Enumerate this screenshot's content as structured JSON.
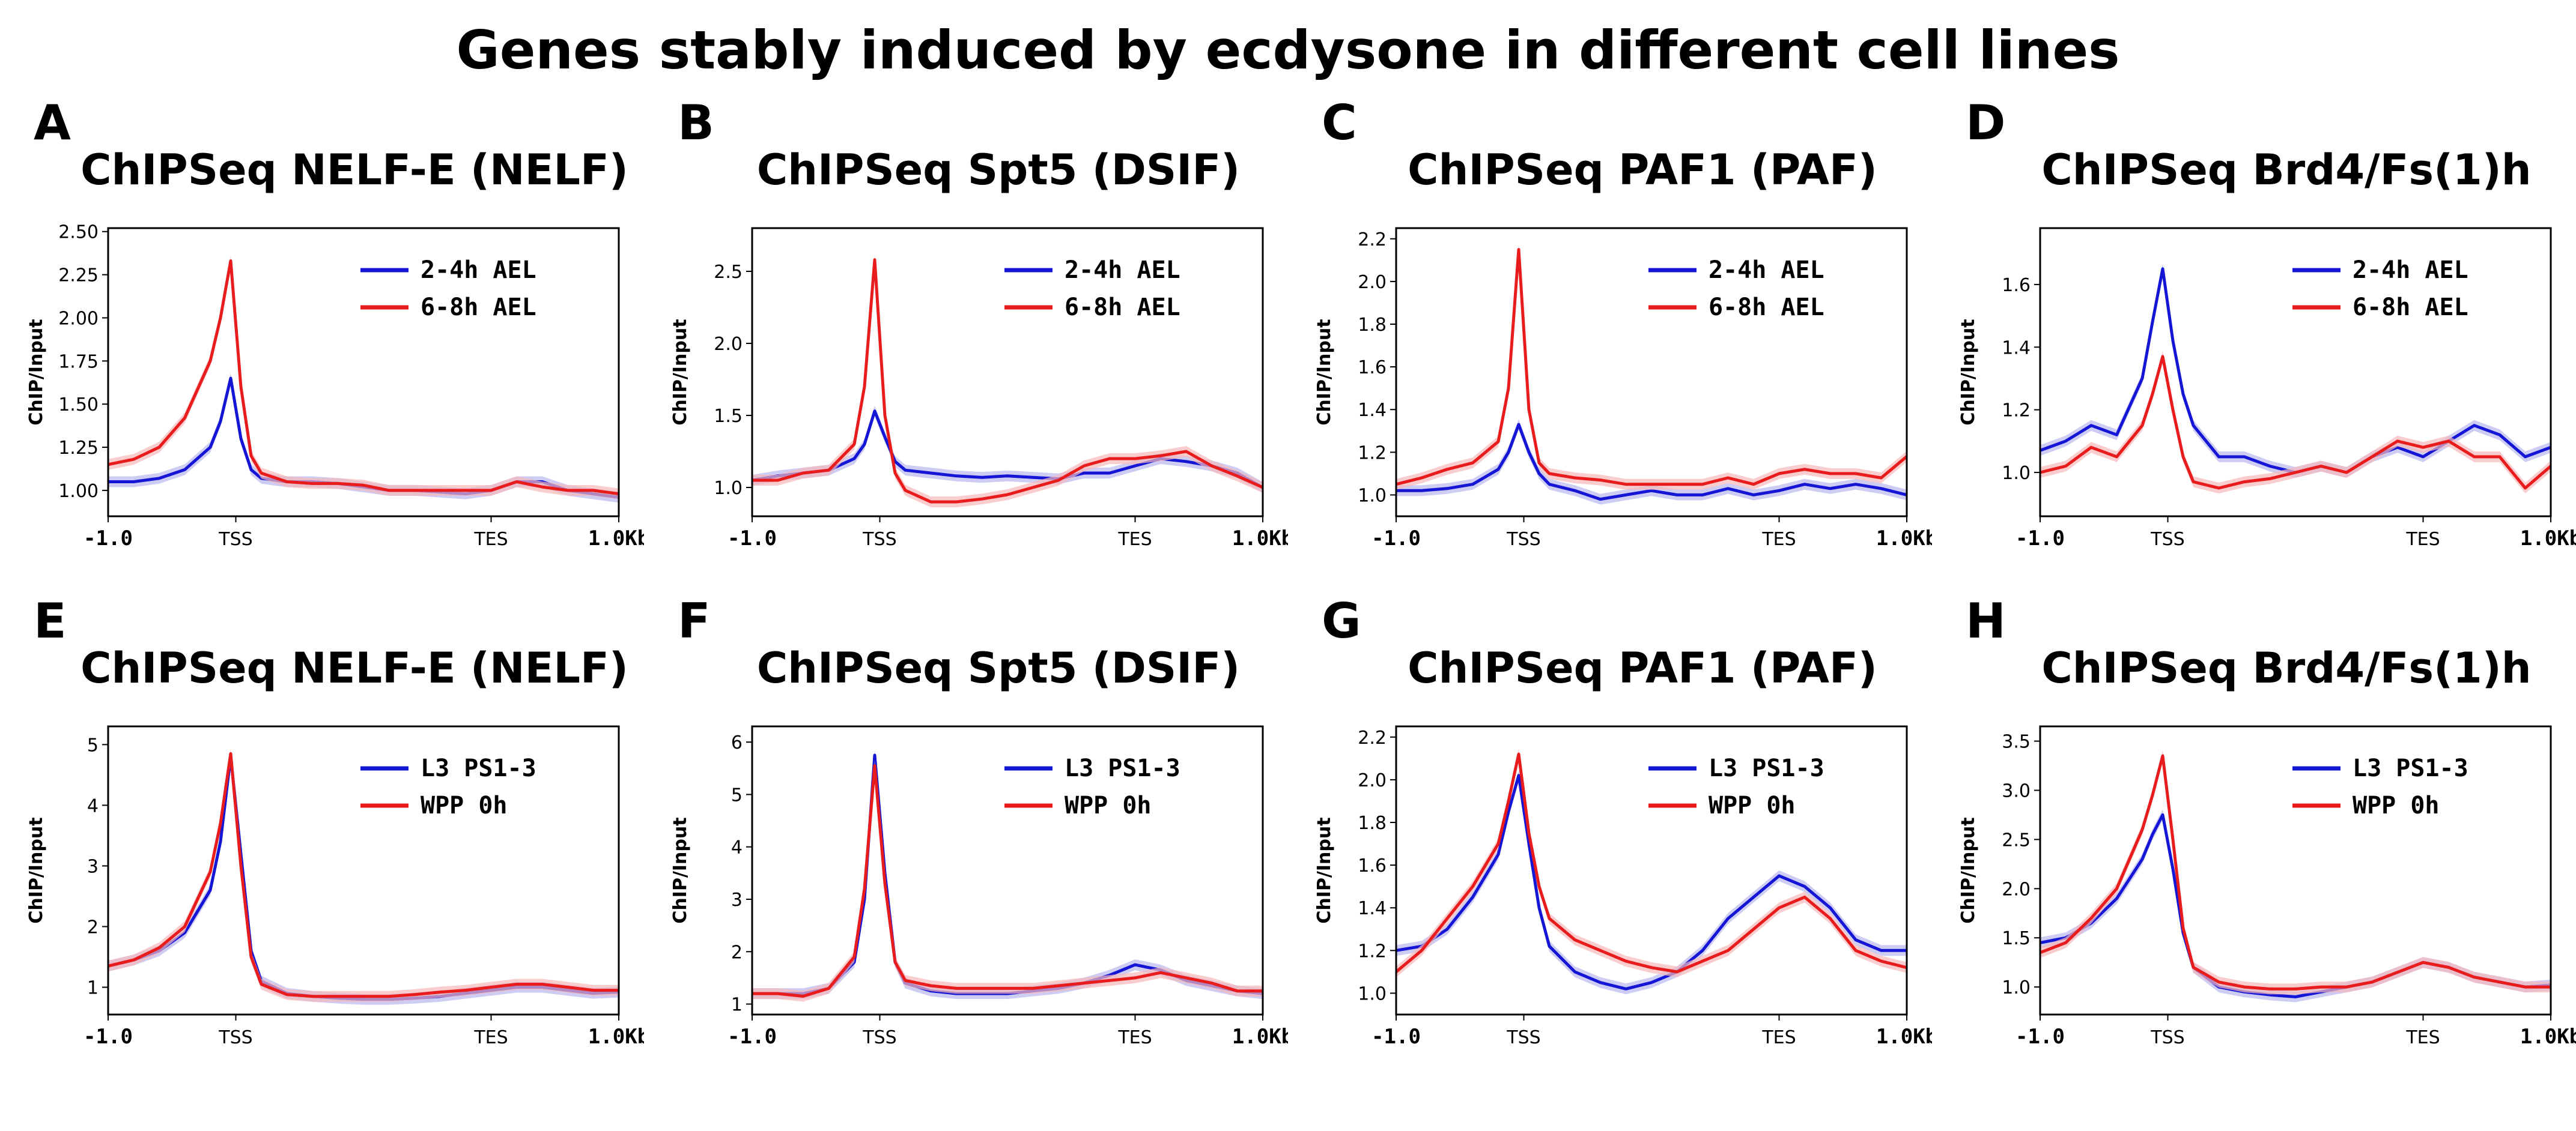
{
  "title": "Genes stably induced by ecdysone in different cell lines",
  "colors": {
    "blue": "#1515d6",
    "red": "#e81c1c",
    "blue_band": "#b8b8f0",
    "red_band": "#f6b8b8"
  },
  "chart_data": [
    {
      "panel": "A",
      "type": "line",
      "title": "ChIPSeq NELF-E (NELF)",
      "ylabel": "ChIP/Input",
      "ylim": [
        0.85,
        2.52
      ],
      "yticks": [
        "1.00",
        "1.25",
        "1.50",
        "1.75",
        "2.00",
        "2.25",
        "2.50"
      ],
      "xticks": [
        "-1.0",
        "TSS",
        "TES",
        "1.0Kb"
      ],
      "legend": "top-right",
      "series": [
        {
          "name": "2-4h AEL",
          "color": "#1515d6",
          "x": [
            0,
            0.05,
            0.1,
            0.15,
            0.2,
            0.22,
            0.24,
            0.26,
            0.28,
            0.3,
            0.35,
            0.4,
            0.45,
            0.5,
            0.55,
            0.6,
            0.65,
            0.7,
            0.75,
            0.8,
            0.85,
            0.9,
            0.95,
            1.0
          ],
          "y": [
            1.05,
            1.05,
            1.07,
            1.12,
            1.25,
            1.4,
            1.65,
            1.3,
            1.12,
            1.07,
            1.05,
            1.05,
            1.04,
            1.02,
            1.0,
            1.0,
            0.99,
            0.98,
            1.0,
            1.05,
            1.05,
            1.0,
            0.98,
            0.96
          ]
        },
        {
          "name": "6-8h AEL",
          "color": "#e81c1c",
          "x": [
            0,
            0.05,
            0.1,
            0.15,
            0.2,
            0.22,
            0.24,
            0.26,
            0.28,
            0.3,
            0.35,
            0.4,
            0.45,
            0.5,
            0.55,
            0.6,
            0.65,
            0.7,
            0.75,
            0.8,
            0.85,
            0.9,
            0.95,
            1.0
          ],
          "y": [
            1.15,
            1.18,
            1.25,
            1.42,
            1.75,
            2.0,
            2.33,
            1.6,
            1.2,
            1.1,
            1.05,
            1.04,
            1.04,
            1.03,
            1.0,
            1.0,
            1.0,
            1.0,
            1.0,
            1.05,
            1.02,
            1.0,
            1.0,
            0.98
          ]
        }
      ]
    },
    {
      "panel": "B",
      "type": "line",
      "title": "ChIPSeq Spt5 (DSIF)",
      "ylabel": "ChIP/Input",
      "ylim": [
        0.8,
        2.8
      ],
      "yticks": [
        "1.0",
        "1.5",
        "2.0",
        "2.5"
      ],
      "xticks": [
        "-1.0",
        "TSS",
        "TES",
        "1.0Kb"
      ],
      "legend": "top-right",
      "series": [
        {
          "name": "2-4h AEL",
          "color": "#1515d6",
          "x": [
            0,
            0.05,
            0.1,
            0.15,
            0.2,
            0.22,
            0.24,
            0.26,
            0.28,
            0.3,
            0.35,
            0.4,
            0.45,
            0.5,
            0.55,
            0.6,
            0.65,
            0.7,
            0.75,
            0.8,
            0.85,
            0.9,
            0.95,
            1.0
          ],
          "y": [
            1.05,
            1.08,
            1.1,
            1.12,
            1.2,
            1.3,
            1.53,
            1.35,
            1.18,
            1.12,
            1.1,
            1.08,
            1.07,
            1.08,
            1.07,
            1.06,
            1.1,
            1.1,
            1.15,
            1.2,
            1.18,
            1.15,
            1.1,
            1.0
          ]
        },
        {
          "name": "6-8h AEL",
          "color": "#e81c1c",
          "x": [
            0,
            0.05,
            0.1,
            0.15,
            0.2,
            0.22,
            0.24,
            0.26,
            0.28,
            0.3,
            0.35,
            0.4,
            0.45,
            0.5,
            0.55,
            0.6,
            0.65,
            0.7,
            0.75,
            0.8,
            0.85,
            0.9,
            0.95,
            1.0
          ],
          "y": [
            1.05,
            1.05,
            1.1,
            1.12,
            1.3,
            1.7,
            2.58,
            1.5,
            1.1,
            0.98,
            0.9,
            0.9,
            0.92,
            0.95,
            1.0,
            1.05,
            1.15,
            1.2,
            1.2,
            1.22,
            1.25,
            1.15,
            1.08,
            1.0
          ]
        }
      ]
    },
    {
      "panel": "C",
      "type": "line",
      "title": "ChIPSeq PAF1 (PAF)",
      "ylabel": "ChIP/Input",
      "ylim": [
        0.9,
        2.25
      ],
      "yticks": [
        "1.0",
        "1.2",
        "1.4",
        "1.6",
        "1.8",
        "2.0",
        "2.2"
      ],
      "xticks": [
        "-1.0",
        "TSS",
        "TES",
        "1.0Kb"
      ],
      "legend": "top-right",
      "series": [
        {
          "name": "2-4h AEL",
          "color": "#1515d6",
          "x": [
            0,
            0.05,
            0.1,
            0.15,
            0.2,
            0.22,
            0.24,
            0.26,
            0.28,
            0.3,
            0.35,
            0.4,
            0.45,
            0.5,
            0.55,
            0.6,
            0.65,
            0.7,
            0.75,
            0.8,
            0.85,
            0.9,
            0.95,
            1.0
          ],
          "y": [
            1.02,
            1.02,
            1.03,
            1.05,
            1.12,
            1.2,
            1.33,
            1.2,
            1.1,
            1.05,
            1.02,
            0.98,
            1.0,
            1.02,
            1.0,
            1.0,
            1.03,
            1.0,
            1.02,
            1.05,
            1.03,
            1.05,
            1.03,
            1.0
          ]
        },
        {
          "name": "6-8h AEL",
          "color": "#e81c1c",
          "x": [
            0,
            0.05,
            0.1,
            0.15,
            0.2,
            0.22,
            0.24,
            0.26,
            0.28,
            0.3,
            0.35,
            0.4,
            0.45,
            0.5,
            0.55,
            0.6,
            0.65,
            0.7,
            0.75,
            0.8,
            0.85,
            0.9,
            0.95,
            1.0
          ],
          "y": [
            1.05,
            1.08,
            1.12,
            1.15,
            1.25,
            1.5,
            2.15,
            1.4,
            1.15,
            1.1,
            1.08,
            1.07,
            1.05,
            1.05,
            1.05,
            1.05,
            1.08,
            1.05,
            1.1,
            1.12,
            1.1,
            1.1,
            1.08,
            1.18
          ]
        }
      ]
    },
    {
      "panel": "D",
      "type": "line",
      "title": "ChIPSeq Brd4/Fs(1)h",
      "ylabel": "ChIP/Input",
      "ylim": [
        0.86,
        1.78
      ],
      "yticks": [
        "1.0",
        "1.2",
        "1.4",
        "1.6"
      ],
      "xticks": [
        "-1.0",
        "TSS",
        "TES",
        "1.0Kb"
      ],
      "legend": "top-right",
      "series": [
        {
          "name": "2-4h AEL",
          "color": "#1515d6",
          "x": [
            0,
            0.05,
            0.1,
            0.15,
            0.2,
            0.22,
            0.24,
            0.26,
            0.28,
            0.3,
            0.35,
            0.4,
            0.45,
            0.5,
            0.55,
            0.6,
            0.65,
            0.7,
            0.75,
            0.8,
            0.85,
            0.9,
            0.95,
            1.0
          ],
          "y": [
            1.07,
            1.1,
            1.15,
            1.12,
            1.3,
            1.48,
            1.65,
            1.42,
            1.25,
            1.15,
            1.05,
            1.05,
            1.02,
            1.0,
            1.02,
            1.0,
            1.05,
            1.08,
            1.05,
            1.1,
            1.15,
            1.12,
            1.05,
            1.08
          ]
        },
        {
          "name": "6-8h AEL",
          "color": "#e81c1c",
          "x": [
            0,
            0.05,
            0.1,
            0.15,
            0.2,
            0.22,
            0.24,
            0.26,
            0.28,
            0.3,
            0.35,
            0.4,
            0.45,
            0.5,
            0.55,
            0.6,
            0.65,
            0.7,
            0.75,
            0.8,
            0.85,
            0.9,
            0.95,
            1.0
          ],
          "y": [
            1.0,
            1.02,
            1.08,
            1.05,
            1.15,
            1.25,
            1.37,
            1.2,
            1.05,
            0.97,
            0.95,
            0.97,
            0.98,
            1.0,
            1.02,
            1.0,
            1.05,
            1.1,
            1.08,
            1.1,
            1.05,
            1.05,
            0.95,
            1.02
          ]
        }
      ]
    },
    {
      "panel": "E",
      "type": "line",
      "title": "ChIPSeq NELF-E (NELF)",
      "ylabel": "ChIP/Input",
      "ylim": [
        0.55,
        5.3
      ],
      "yticks": [
        "1",
        "2",
        "3",
        "4",
        "5"
      ],
      "xticks": [
        "-1.0",
        "TSS",
        "TES",
        "1.0Kb"
      ],
      "legend": "top-right",
      "series": [
        {
          "name": "L3 PS1-3",
          "color": "#1515d6",
          "x": [
            0,
            0.05,
            0.1,
            0.15,
            0.2,
            0.22,
            0.24,
            0.26,
            0.28,
            0.3,
            0.35,
            0.4,
            0.45,
            0.5,
            0.55,
            0.6,
            0.65,
            0.7,
            0.75,
            0.8,
            0.85,
            0.9,
            0.95,
            1.0
          ],
          "y": [
            1.35,
            1.45,
            1.6,
            1.9,
            2.6,
            3.4,
            4.8,
            3.2,
            1.6,
            1.1,
            0.9,
            0.85,
            0.82,
            0.8,
            0.8,
            0.82,
            0.85,
            0.9,
            0.95,
            1.0,
            1.0,
            0.95,
            0.9,
            0.92
          ]
        },
        {
          "name": "WPP 0h",
          "color": "#e81c1c",
          "x": [
            0,
            0.05,
            0.1,
            0.15,
            0.2,
            0.22,
            0.24,
            0.26,
            0.28,
            0.3,
            0.35,
            0.4,
            0.45,
            0.5,
            0.55,
            0.6,
            0.65,
            0.7,
            0.75,
            0.8,
            0.85,
            0.9,
            0.95,
            1.0
          ],
          "y": [
            1.35,
            1.45,
            1.65,
            2.0,
            2.9,
            3.7,
            4.85,
            3.0,
            1.5,
            1.05,
            0.88,
            0.85,
            0.85,
            0.85,
            0.85,
            0.88,
            0.92,
            0.95,
            1.0,
            1.05,
            1.05,
            1.0,
            0.95,
            0.95
          ]
        }
      ]
    },
    {
      "panel": "F",
      "type": "line",
      "title": "ChIPSeq Spt5 (DSIF)",
      "ylabel": "ChIP/Input",
      "ylim": [
        0.8,
        6.3
      ],
      "yticks": [
        "1",
        "2",
        "3",
        "4",
        "5",
        "6"
      ],
      "xticks": [
        "-1.0",
        "TSS",
        "TES",
        "1.0Kb"
      ],
      "legend": "top-right",
      "series": [
        {
          "name": "L3 PS1-3",
          "color": "#1515d6",
          "x": [
            0,
            0.05,
            0.1,
            0.15,
            0.2,
            0.22,
            0.24,
            0.26,
            0.28,
            0.3,
            0.35,
            0.4,
            0.45,
            0.5,
            0.55,
            0.6,
            0.65,
            0.7,
            0.75,
            0.8,
            0.85,
            0.9,
            0.95,
            1.0
          ],
          "y": [
            1.2,
            1.2,
            1.2,
            1.3,
            1.8,
            3.0,
            5.75,
            3.5,
            1.8,
            1.4,
            1.25,
            1.2,
            1.2,
            1.2,
            1.25,
            1.3,
            1.4,
            1.55,
            1.75,
            1.65,
            1.45,
            1.35,
            1.25,
            1.2
          ]
        },
        {
          "name": "WPP 0h",
          "color": "#e81c1c",
          "x": [
            0,
            0.05,
            0.1,
            0.15,
            0.2,
            0.22,
            0.24,
            0.26,
            0.28,
            0.3,
            0.35,
            0.4,
            0.45,
            0.5,
            0.55,
            0.6,
            0.65,
            0.7,
            0.75,
            0.8,
            0.85,
            0.9,
            0.95,
            1.0
          ],
          "y": [
            1.2,
            1.2,
            1.15,
            1.3,
            1.9,
            3.2,
            5.55,
            3.3,
            1.8,
            1.45,
            1.35,
            1.3,
            1.3,
            1.3,
            1.3,
            1.35,
            1.4,
            1.45,
            1.5,
            1.6,
            1.5,
            1.4,
            1.25,
            1.25
          ]
        }
      ]
    },
    {
      "panel": "G",
      "type": "line",
      "title": "ChIPSeq PAF1 (PAF)",
      "ylabel": "ChIP/Input",
      "ylim": [
        0.9,
        2.25
      ],
      "yticks": [
        "1.0",
        "1.2",
        "1.4",
        "1.6",
        "1.8",
        "2.0",
        "2.2"
      ],
      "xticks": [
        "-1.0",
        "TSS",
        "TES",
        "1.0Kb"
      ],
      "legend": "top-right",
      "series": [
        {
          "name": "L3 PS1-3",
          "color": "#1515d6",
          "x": [
            0,
            0.05,
            0.1,
            0.15,
            0.2,
            0.22,
            0.24,
            0.26,
            0.28,
            0.3,
            0.35,
            0.4,
            0.45,
            0.5,
            0.55,
            0.6,
            0.65,
            0.7,
            0.75,
            0.8,
            0.85,
            0.9,
            0.95,
            1.0
          ],
          "y": [
            1.2,
            1.22,
            1.3,
            1.45,
            1.65,
            1.85,
            2.02,
            1.7,
            1.4,
            1.22,
            1.1,
            1.05,
            1.02,
            1.05,
            1.1,
            1.2,
            1.35,
            1.45,
            1.55,
            1.5,
            1.4,
            1.25,
            1.2,
            1.2
          ]
        },
        {
          "name": "WPP 0h",
          "color": "#e81c1c",
          "x": [
            0,
            0.05,
            0.1,
            0.15,
            0.2,
            0.22,
            0.24,
            0.26,
            0.28,
            0.3,
            0.35,
            0.4,
            0.45,
            0.5,
            0.55,
            0.6,
            0.65,
            0.7,
            0.75,
            0.8,
            0.85,
            0.9,
            0.95,
            1.0
          ],
          "y": [
            1.1,
            1.2,
            1.35,
            1.5,
            1.7,
            1.9,
            2.12,
            1.75,
            1.5,
            1.35,
            1.25,
            1.2,
            1.15,
            1.12,
            1.1,
            1.15,
            1.2,
            1.3,
            1.4,
            1.45,
            1.35,
            1.2,
            1.15,
            1.12
          ]
        }
      ]
    },
    {
      "panel": "H",
      "type": "line",
      "title": "ChIPSeq Brd4/Fs(1)h",
      "ylabel": "ChIP/Input",
      "ylim": [
        0.72,
        3.65
      ],
      "yticks": [
        "1.0",
        "1.5",
        "2.0",
        "2.5",
        "3.0",
        "3.5"
      ],
      "xticks": [
        "-1.0",
        "TSS",
        "TES",
        "1.0Kb"
      ],
      "legend": "top-right",
      "series": [
        {
          "name": "L3 PS1-3",
          "color": "#1515d6",
          "x": [
            0,
            0.05,
            0.1,
            0.15,
            0.2,
            0.22,
            0.24,
            0.26,
            0.28,
            0.3,
            0.35,
            0.4,
            0.45,
            0.5,
            0.55,
            0.6,
            0.65,
            0.7,
            0.75,
            0.8,
            0.85,
            0.9,
            0.95,
            1.0
          ],
          "y": [
            1.45,
            1.5,
            1.65,
            1.9,
            2.3,
            2.55,
            2.75,
            2.2,
            1.55,
            1.2,
            1.0,
            0.95,
            0.92,
            0.9,
            0.95,
            1.0,
            1.05,
            1.15,
            1.25,
            1.2,
            1.1,
            1.05,
            1.0,
            1.02
          ]
        },
        {
          "name": "WPP 0h",
          "color": "#e81c1c",
          "x": [
            0,
            0.05,
            0.1,
            0.15,
            0.2,
            0.22,
            0.24,
            0.26,
            0.28,
            0.3,
            0.35,
            0.4,
            0.45,
            0.5,
            0.55,
            0.6,
            0.65,
            0.7,
            0.75,
            0.8,
            0.85,
            0.9,
            0.95,
            1.0
          ],
          "y": [
            1.35,
            1.45,
            1.7,
            2.0,
            2.6,
            2.95,
            3.35,
            2.5,
            1.6,
            1.2,
            1.05,
            1.0,
            0.98,
            0.98,
            1.0,
            1.0,
            1.05,
            1.15,
            1.25,
            1.2,
            1.1,
            1.05,
            1.0,
            1.0
          ]
        }
      ]
    }
  ]
}
